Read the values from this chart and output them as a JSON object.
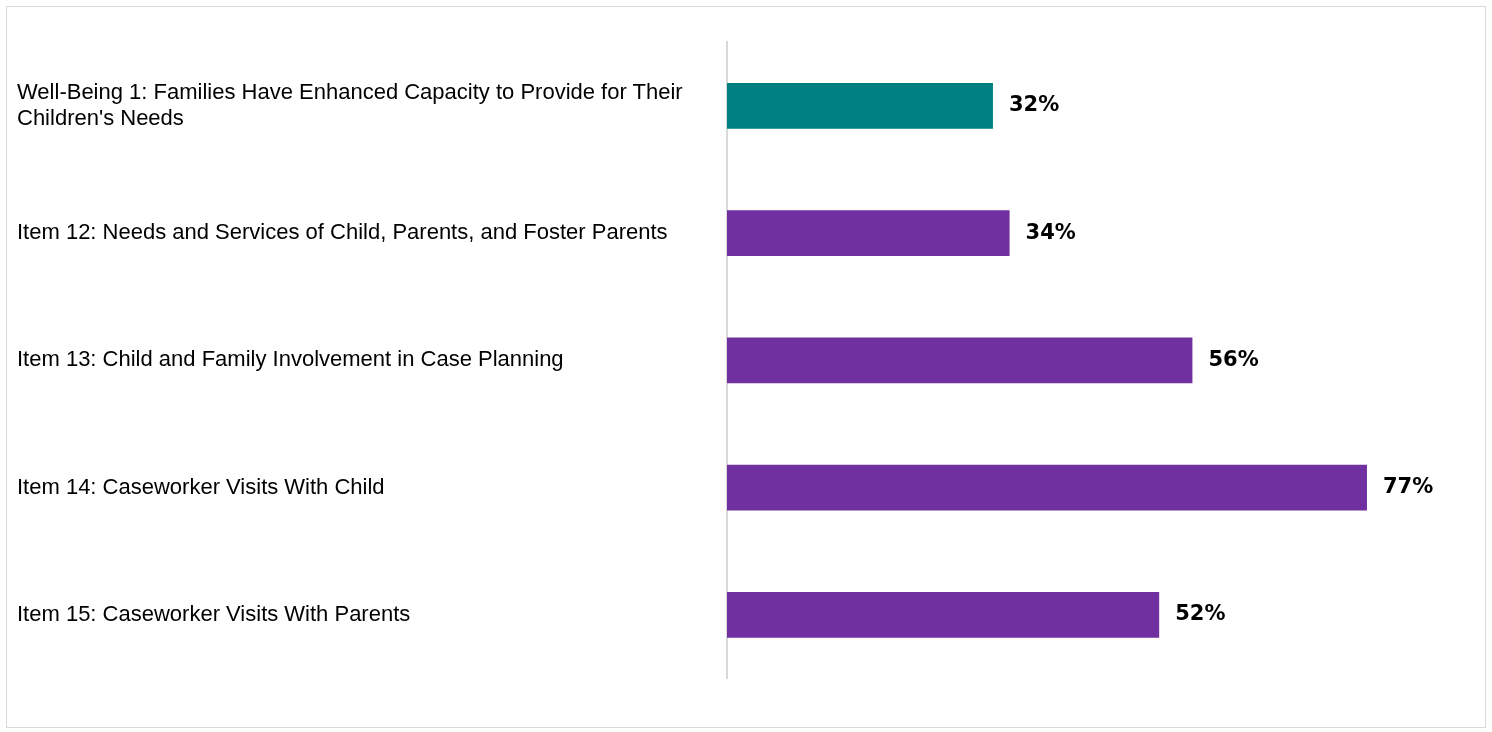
{
  "chart_data": {
    "type": "bar",
    "orientation": "horizontal",
    "categories": [
      "Well-Being 1: Families Have Enhanced Capacity to Provide for Their Children's Needs",
      "Item 12: Needs and Services of Child, Parents, and Foster Parents",
      "Item 13: Child and Family Involvement in Case Planning",
      "Item 14: Caseworker Visits With Child",
      "Item 15: Caseworker Visits With Parents"
    ],
    "values": [
      32,
      34,
      56,
      77,
      52
    ],
    "colors": [
      "#008080",
      "#7030a0",
      "#7030a0",
      "#7030a0",
      "#7030a0"
    ],
    "value_labels": [
      "32%",
      "34%",
      "56%",
      "77%",
      "52%"
    ],
    "tick_labels": "y",
    "grid": false,
    "legend": false
  }
}
